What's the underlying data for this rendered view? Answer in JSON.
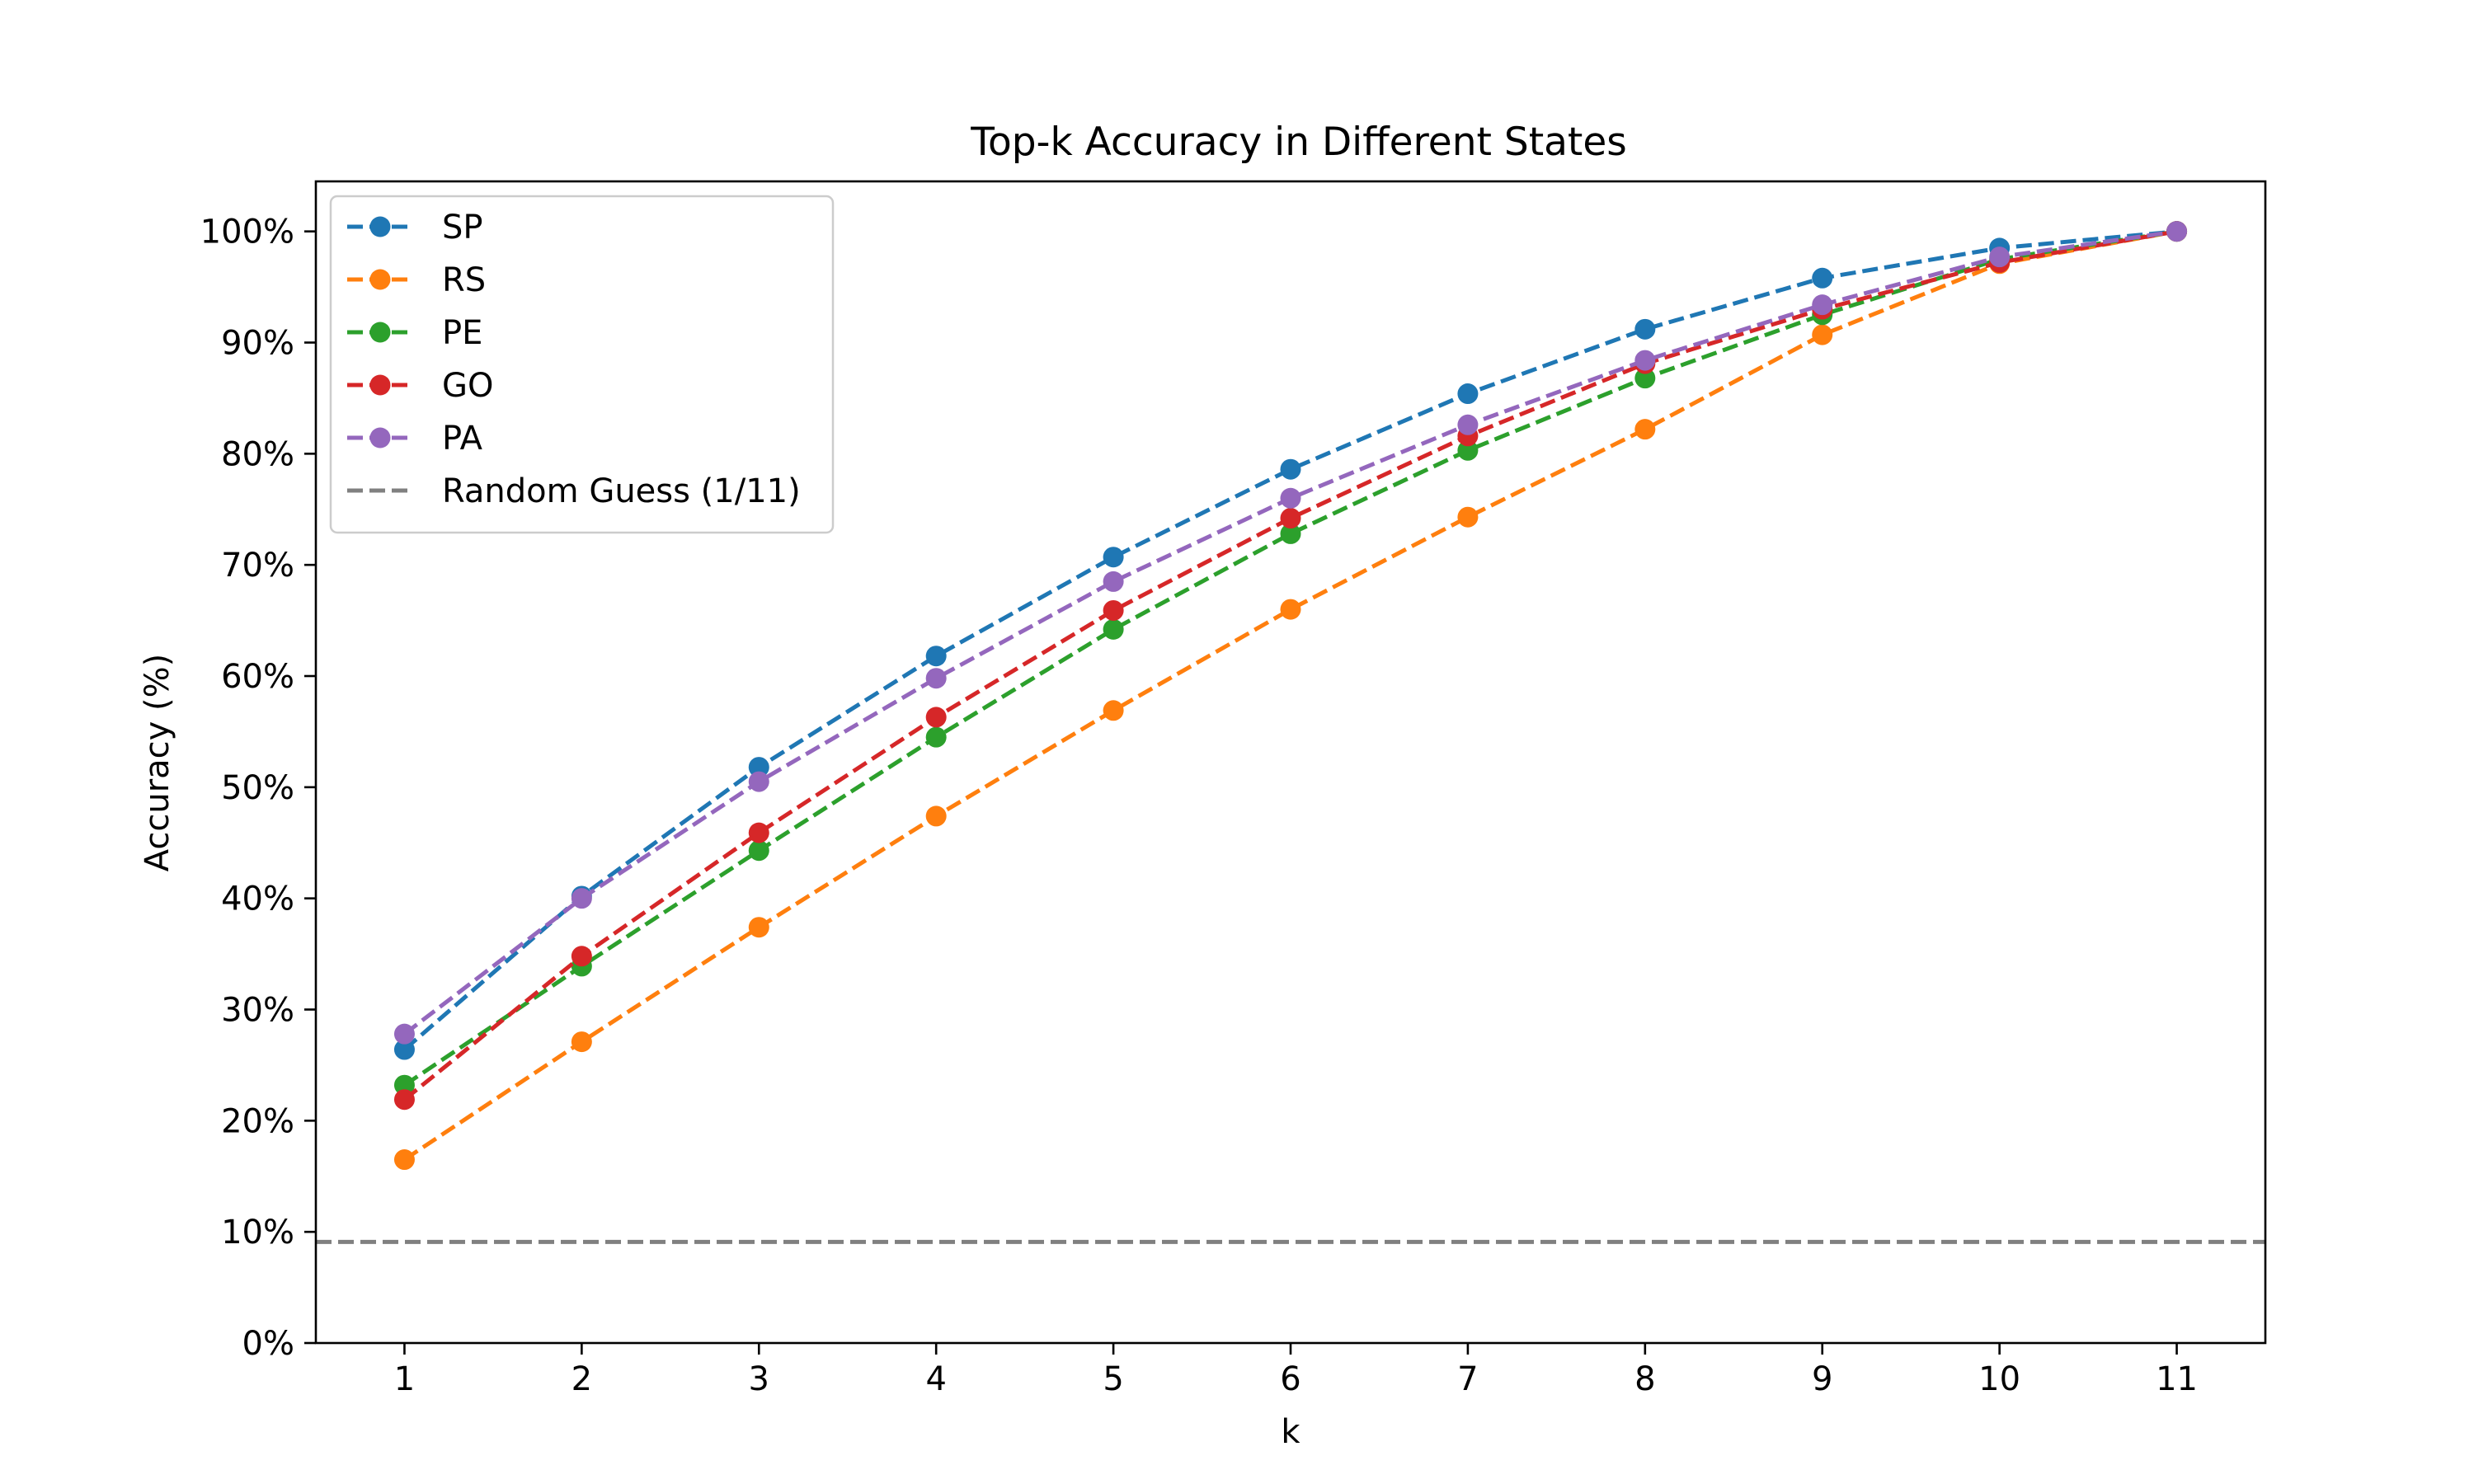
{
  "chart_data": {
    "type": "line",
    "title": "Top-k Accuracy in Different States",
    "xlabel": "k",
    "ylabel": "Accuracy (%)",
    "x": [
      1,
      2,
      3,
      4,
      5,
      6,
      7,
      8,
      9,
      10,
      11
    ],
    "x_tick_labels": [
      "1",
      "2",
      "3",
      "4",
      "5",
      "6",
      "7",
      "8",
      "9",
      "10",
      "11"
    ],
    "xlim": [
      0.5,
      11.5
    ],
    "ylim": [
      0,
      1.045
    ],
    "y_ticks": [
      0,
      0.1,
      0.2,
      0.3,
      0.4,
      0.5,
      0.6,
      0.7,
      0.8,
      0.9,
      1.0
    ],
    "y_tick_labels": [
      "0%",
      "10%",
      "20%",
      "30%",
      "40%",
      "50%",
      "60%",
      "70%",
      "80%",
      "90%",
      "100%"
    ],
    "grid": false,
    "legend_position": "upper-left",
    "series": [
      {
        "name": "SP",
        "color": "#1f77b4",
        "values": [
          0.264,
          0.402,
          0.518,
          0.618,
          0.707,
          0.786,
          0.854,
          0.912,
          0.958,
          0.985,
          1.0
        ]
      },
      {
        "name": "RS",
        "color": "#ff7f0e",
        "values": [
          0.165,
          0.271,
          0.374,
          0.474,
          0.569,
          0.66,
          0.743,
          0.822,
          0.907,
          0.971,
          1.0
        ]
      },
      {
        "name": "PE",
        "color": "#2ca02c",
        "values": [
          0.232,
          0.339,
          0.443,
          0.545,
          0.642,
          0.728,
          0.803,
          0.868,
          0.925,
          0.975,
          1.0
        ]
      },
      {
        "name": "GO",
        "color": "#d62728",
        "values": [
          0.219,
          0.348,
          0.459,
          0.563,
          0.659,
          0.742,
          0.816,
          0.881,
          0.93,
          0.972,
          1.0
        ]
      },
      {
        "name": "PA",
        "color": "#9467bd",
        "values": [
          0.278,
          0.4,
          0.505,
          0.598,
          0.685,
          0.76,
          0.826,
          0.884,
          0.934,
          0.977,
          1.0
        ]
      }
    ],
    "reference_line": {
      "name": "Random Guess (1/11)",
      "value": 0.0909,
      "color": "#808080"
    }
  }
}
